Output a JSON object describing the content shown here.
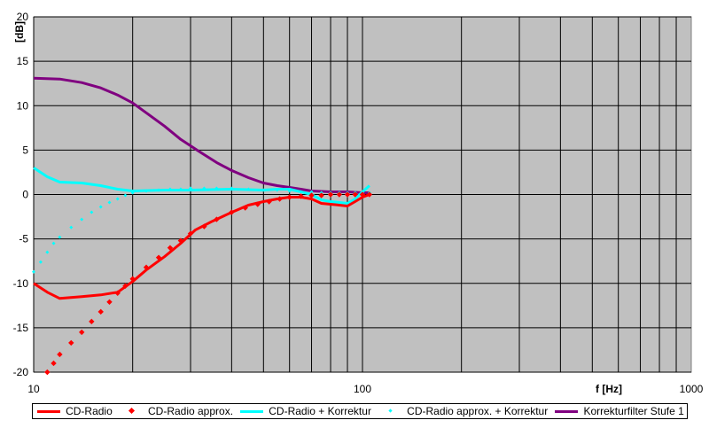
{
  "chart_data": {
    "type": "line",
    "xscale": "log",
    "xlim": [
      10,
      1000
    ],
    "ylim": [
      -20,
      20
    ],
    "xticks": [
      "10",
      "100",
      "1000"
    ],
    "yticks": [
      "20",
      "15",
      "10",
      "5",
      "0",
      "-5",
      "-10",
      "-15",
      "-20"
    ],
    "xlabel": "f [Hz]",
    "ylabel": "[dB]",
    "grid": true,
    "legend_position": "bottom",
    "plot_background": "#c0c0c0",
    "series": [
      {
        "name": "CD-Radio",
        "style": "line",
        "color": "#ff0000",
        "x": [
          10,
          11,
          12,
          14,
          16,
          18,
          20,
          22,
          25,
          28,
          31,
          35,
          40,
          45,
          50,
          55,
          60,
          65,
          70,
          75,
          80,
          85,
          90,
          95,
          100,
          105
        ],
        "y": [
          -10,
          -11,
          -11.7,
          -11.5,
          -11.3,
          -11,
          -9.8,
          -8.5,
          -7,
          -5.5,
          -4,
          -3,
          -2,
          -1.2,
          -0.8,
          -0.5,
          -0.3,
          -0.3,
          -0.5,
          -1,
          -1.1,
          -1.2,
          -1.3,
          -0.8,
          -0.3,
          0
        ]
      },
      {
        "name": "CD-Radio approx.",
        "style": "dots",
        "color": "#ff0000",
        "x": [
          11,
          11.5,
          12,
          13,
          14,
          15,
          16,
          17,
          18,
          19,
          20,
          22,
          24,
          26,
          28,
          30,
          33,
          36,
          40,
          44,
          48,
          52,
          56,
          60,
          65,
          70,
          75,
          80,
          85,
          90,
          95,
          100,
          105
        ],
        "y": [
          -20,
          -19,
          -18,
          -16.7,
          -15.5,
          -14.3,
          -13.2,
          -12.1,
          -11.1,
          -10.3,
          -9.5,
          -8.2,
          -7.1,
          -6,
          -5.2,
          -4.4,
          -3.6,
          -2.8,
          -2,
          -1.5,
          -1.1,
          -0.8,
          -0.5,
          -0.3,
          -0.2,
          -0.1,
          -0.1,
          0,
          0,
          0,
          0,
          0,
          0
        ]
      },
      {
        "name": "CD-Radio + Korrektur",
        "style": "line",
        "color": "#00ffff",
        "x": [
          10,
          11,
          12,
          14,
          16,
          18,
          20,
          25,
          30,
          40,
          50,
          55,
          60,
          65,
          70,
          75,
          80,
          85,
          90,
          95,
          100,
          105
        ],
        "y": [
          3,
          2,
          1.4,
          1.3,
          1,
          0.6,
          0.4,
          0.5,
          0.5,
          0.6,
          0.5,
          0.6,
          0.6,
          0.3,
          0,
          -0.6,
          -0.8,
          -0.9,
          -1,
          -0.5,
          0.3,
          1
        ]
      },
      {
        "name": "CD-Radio approx. + Korrektur",
        "style": "dots",
        "color": "#00ffff",
        "x": [
          10,
          10.5,
          11,
          11.5,
          12,
          13,
          14,
          15,
          16,
          17,
          18,
          19,
          20,
          22,
          24,
          26,
          28,
          30,
          33,
          36,
          40,
          45,
          50,
          55,
          60,
          65,
          70,
          75,
          80,
          85,
          90,
          95,
          100,
          105
        ],
        "y": [
          -8.7,
          -7.6,
          -6.5,
          -5.5,
          -4.8,
          -3.7,
          -2.8,
          -2,
          -1.4,
          -0.9,
          -0.5,
          -0.1,
          0.2,
          0.4,
          0.5,
          0.6,
          0.6,
          0.7,
          0.7,
          0.7,
          0.7,
          0.6,
          0.5,
          0.5,
          0.4,
          0.3,
          0.3,
          0.2,
          0.2,
          0.2,
          0.2,
          0.2,
          0.2,
          0.2
        ]
      },
      {
        "name": "Korrekturfilter Stufe 1",
        "style": "line",
        "color": "#800080",
        "x": [
          10,
          12,
          14,
          16,
          18,
          20,
          22,
          25,
          28,
          32,
          36,
          40,
          45,
          50,
          55,
          60,
          65,
          70,
          80,
          90,
          100,
          105
        ],
        "y": [
          13.1,
          13,
          12.6,
          12,
          11.2,
          10.3,
          9.2,
          7.7,
          6.2,
          4.8,
          3.6,
          2.7,
          1.9,
          1.3,
          1,
          0.8,
          0.6,
          0.4,
          0.3,
          0.3,
          0.2,
          0.2
        ]
      }
    ]
  }
}
